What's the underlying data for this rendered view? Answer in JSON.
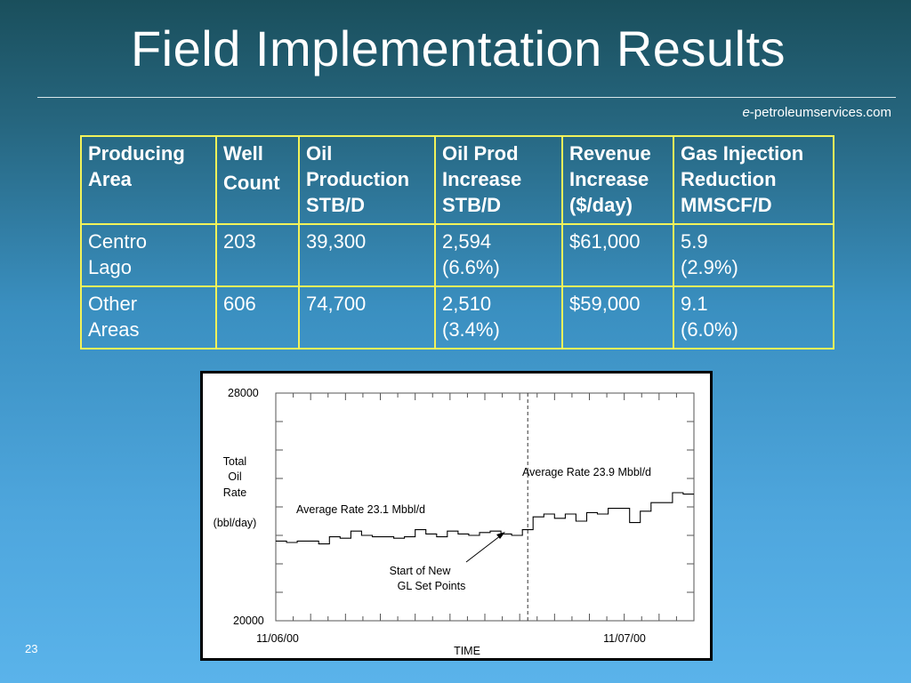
{
  "slide": {
    "title": "Field Implementation Results",
    "site_prefix": "e",
    "site_suffix": "-petroleumservices.com",
    "page_number": "23"
  },
  "table": {
    "headers": [
      [
        "Producing",
        "Area"
      ],
      [
        "Well",
        "Count"
      ],
      [
        "Oil",
        "Production",
        "STB/D"
      ],
      [
        "Oil Prod",
        "Increase",
        "STB/D"
      ],
      [
        "Revenue",
        "Increase",
        "($/day)"
      ],
      [
        "Gas Injection",
        "Reduction",
        "MMSCF/D"
      ]
    ],
    "rows": [
      [
        [
          "Centro",
          "Lago"
        ],
        [
          "203"
        ],
        [
          "39,300"
        ],
        [
          "2,594",
          "(6.6%)"
        ],
        [
          "$61,000"
        ],
        [
          "5.9",
          "(2.9%)"
        ]
      ],
      [
        [
          "Other",
          "Areas"
        ],
        [
          "606"
        ],
        [
          "74,700"
        ],
        [
          "2,510",
          "(3.4%)"
        ],
        [
          "$59,000"
        ],
        [
          "9.1",
          "(6.0%)"
        ]
      ]
    ],
    "border_color": "#f2f25a"
  },
  "chart_data": {
    "type": "line",
    "ylim": [
      20000,
      28000
    ],
    "y_ticks": [
      "28000",
      "20000"
    ],
    "x_ticks": [
      "11/06/00",
      "11/07/00"
    ],
    "xlabel": "TIME",
    "ylabel_lines": [
      "Total",
      "Oil",
      "Rate",
      "",
      "(bbl/day)"
    ],
    "series": [
      {
        "values": [
          22800,
          22750,
          22800,
          22800,
          22700,
          22950,
          22900,
          23150,
          23000,
          22950,
          22950,
          22900,
          22950,
          23200,
          23050,
          22950,
          23150,
          23050,
          23000,
          23100,
          23150,
          23050,
          23000,
          23200,
          23650,
          23750,
          23600,
          23750,
          23500,
          23800,
          23750,
          23950,
          23950,
          23450,
          23850,
          24150,
          24150,
          24500,
          24450
        ]
      }
    ],
    "change_index": 23.5,
    "annotations": [
      "Average  Rate  23.1 Mbbl/d",
      "Average  Rate  23.9 Mbbl/d",
      "Start  of  New",
      "GL  Set  Points"
    ]
  }
}
